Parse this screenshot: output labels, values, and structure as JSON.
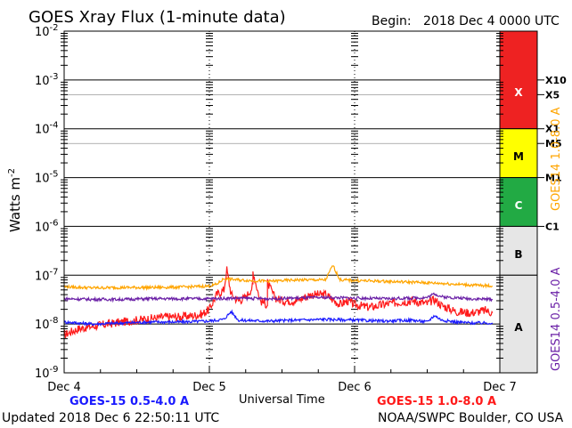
{
  "header": {
    "title": "GOES Xray Flux (1-minute data)",
    "begin_label": "Begin:",
    "begin_value": "2018 Dec 4 0000 UTC"
  },
  "footer": {
    "updated": "Updated 2018 Dec  6 22:50:11 UTC",
    "source": "NOAA/SWPC Boulder, CO USA",
    "legend_goes15_short": "GOES-15 0.5-4.0 A",
    "legend_goes15_long": "GOES-15 1.0-8.0 A"
  },
  "colors": {
    "goes15_short": "#1a1aff",
    "goes15_long": "#ff1a1a",
    "goes14_short": "#6a1fa6",
    "goes14_long": "#ffa500",
    "class_x": "#ee2222",
    "class_m": "#ffff00",
    "class_c": "#22aa44",
    "class_ab": "#e6e6e6"
  },
  "chart_data": {
    "type": "line",
    "title": "GOES Xray Flux (1-minute data)",
    "xlabel": "Universal Time",
    "ylabel": "Watts m-2",
    "y_scale": "log",
    "ylim": [
      1e-09,
      0.01
    ],
    "x_ticks": [
      "Dec 4",
      "Dec 5",
      "Dec 6",
      "Dec 7"
    ],
    "x_range_days": [
      0,
      3
    ],
    "y_ticks": [
      {
        "mant": "10",
        "exp": "-9"
      },
      {
        "mant": "10",
        "exp": "-8"
      },
      {
        "mant": "10",
        "exp": "-7"
      },
      {
        "mant": "10",
        "exp": "-6"
      },
      {
        "mant": "10",
        "exp": "-5"
      },
      {
        "mant": "10",
        "exp": "-4"
      },
      {
        "mant": "10",
        "exp": "-3"
      },
      {
        "mant": "10",
        "exp": "-2"
      }
    ],
    "flare_thresholds": [
      {
        "label": "X10",
        "value": 0.001
      },
      {
        "label": "X5",
        "value": 0.0005
      },
      {
        "label": "X1",
        "value": 0.0001
      },
      {
        "label": "M5",
        "value": 5e-05
      },
      {
        "label": "M1",
        "value": 1e-05
      },
      {
        "label": "C1",
        "value": 1e-06
      }
    ],
    "flare_classes": [
      {
        "label": "X",
        "from": 0.0001,
        "to": 0.01,
        "color": "#ee2222"
      },
      {
        "label": "M",
        "from": 1e-05,
        "to": 0.0001,
        "color": "#ffff00"
      },
      {
        "label": "C",
        "from": 1e-06,
        "to": 1e-05,
        "color": "#22aa44"
      },
      {
        "label": "B",
        "from": 1e-07,
        "to": 1e-06,
        "color": "#e6e6e6"
      },
      {
        "label": "A",
        "from": 1e-09,
        "to": 1e-07,
        "color": "#e6e6e6"
      }
    ],
    "right_axis_labels": [
      "GOES14 0.5-4.0 A",
      "GOES14 1.0-8.0 A"
    ],
    "series": [
      {
        "name": "GOES-15 1.0-8.0 A",
        "color": "#ff1a1a",
        "x": [
          0.0,
          0.05,
          0.1,
          0.2,
          0.3,
          0.4,
          0.5,
          0.6,
          0.7,
          0.8,
          0.9,
          0.95,
          1.0,
          1.05,
          1.1,
          1.12,
          1.15,
          1.2,
          1.25,
          1.3,
          1.3,
          1.35,
          1.4,
          1.4,
          1.45,
          1.5,
          1.6,
          1.65,
          1.7,
          1.8,
          1.9,
          1.95,
          2.0,
          2.1,
          2.2,
          2.3,
          2.4,
          2.5,
          2.55,
          2.6,
          2.7,
          2.8,
          2.9,
          2.95
        ],
        "y": [
          6e-09,
          7e-09,
          8e-09,
          9e-09,
          1e-08,
          1.1e-08,
          1.2e-08,
          1.3e-08,
          1.4e-08,
          1.4e-08,
          1.5e-08,
          1.6e-08,
          2e-08,
          4e-08,
          5e-08,
          1.3e-07,
          4e-08,
          3e-08,
          3.5e-08,
          6e-08,
          1.2e-07,
          3e-08,
          2.5e-08,
          7e-08,
          3.5e-08,
          3e-08,
          3e-08,
          3.5e-08,
          4e-08,
          4e-08,
          2.5e-08,
          3e-08,
          2.5e-08,
          2.2e-08,
          2.5e-08,
          2.8e-08,
          3e-08,
          2.6e-08,
          3.2e-08,
          2.4e-08,
          1.8e-08,
          1.7e-08,
          1.9e-08,
          1.7e-08
        ]
      },
      {
        "name": "GOES-15 0.5-4.0 A",
        "color": "#1a1aff",
        "x": [
          0.0,
          0.2,
          0.4,
          0.6,
          0.8,
          1.0,
          1.1,
          1.15,
          1.2,
          1.4,
          1.6,
          1.8,
          2.0,
          2.2,
          2.4,
          2.5,
          2.55,
          2.6,
          2.7,
          2.8,
          2.95
        ],
        "y": [
          1.1e-08,
          1e-08,
          1.05e-08,
          1.1e-08,
          1.1e-08,
          1.15e-08,
          1.25e-08,
          1.8e-08,
          1.2e-08,
          1.15e-08,
          1.2e-08,
          1.25e-08,
          1.2e-08,
          1.15e-08,
          1.2e-08,
          1.1e-08,
          1.5e-08,
          1.2e-08,
          1.1e-08,
          1.05e-08,
          1.05e-08
        ]
      },
      {
        "name": "GOES14 1.0-8.0 A",
        "color": "#ffa500",
        "x": [
          0.0,
          0.2,
          0.4,
          0.6,
          0.8,
          1.0,
          1.05,
          1.1,
          1.2,
          1.4,
          1.6,
          1.8,
          1.85,
          1.9,
          2.0,
          2.2,
          2.4,
          2.6,
          2.8,
          2.95
        ],
        "y": [
          5.8e-08,
          5.5e-08,
          5.6e-08,
          5.6e-08,
          5.7e-08,
          6e-08,
          6.5e-08,
          8.5e-08,
          8e-08,
          7.5e-08,
          8e-08,
          8e-08,
          1.6e-07,
          8e-08,
          7.8e-08,
          7.5e-08,
          7.2e-08,
          6.8e-08,
          6.3e-08,
          6e-08
        ]
      },
      {
        "name": "GOES14 0.5-4.0 A",
        "color": "#6a1fa6",
        "x": [
          0.0,
          0.2,
          0.4,
          0.6,
          0.8,
          1.0,
          1.2,
          1.4,
          1.6,
          1.8,
          2.0,
          2.2,
          2.4,
          2.5,
          2.55,
          2.6,
          2.8,
          2.95
        ],
        "y": [
          3.3e-08,
          3.2e-08,
          3.2e-08,
          3.3e-08,
          3.3e-08,
          3.3e-08,
          3.4e-08,
          3.3e-08,
          3.4e-08,
          3.5e-08,
          3.4e-08,
          3.3e-08,
          3.4e-08,
          3.5e-08,
          4.2e-08,
          3.6e-08,
          3.3e-08,
          3.2e-08
        ]
      }
    ]
  }
}
